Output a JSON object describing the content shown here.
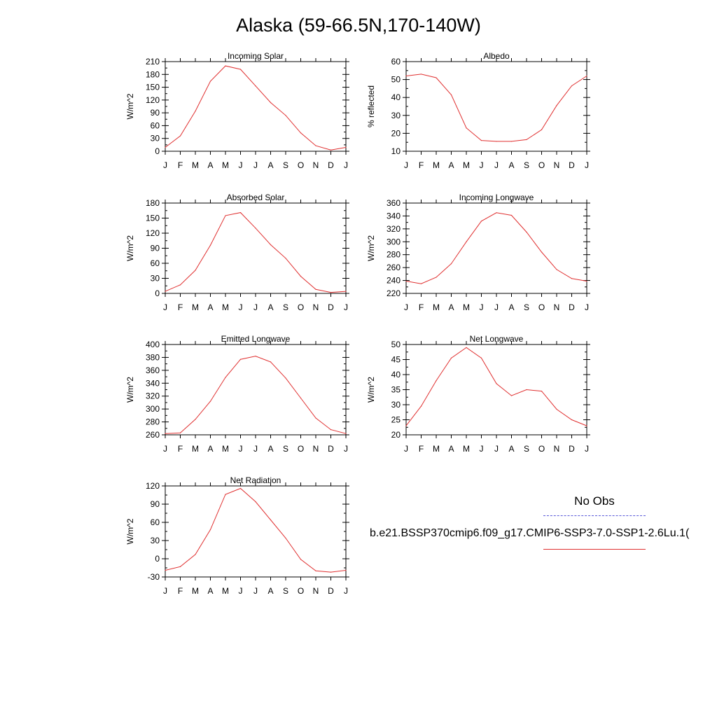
{
  "title": "Alaska (59-66.5N,170-140W)",
  "legend": {
    "obs_label": "No Obs",
    "model_label": "b.e21.BSSP370cmip6.f09_g17.CMIP6-SSP3-7.0-SSP1-2.6Lu.1(",
    "obs_color": "#5a5ad8",
    "model_color": "#e03030"
  },
  "chart_data": [
    {
      "type": "line",
      "title": "Incoming Solar",
      "ylabel": "W/m^2",
      "x": [
        "J",
        "F",
        "M",
        "A",
        "M",
        "J",
        "J",
        "A",
        "S",
        "O",
        "N",
        "D",
        "J"
      ],
      "ylim": [
        0,
        210
      ],
      "yticks": [
        0,
        30,
        60,
        90,
        120,
        150,
        180,
        210
      ],
      "series": [
        {
          "values": [
            9,
            36,
            94,
            164,
            200,
            192,
            153,
            114,
            84,
            43,
            13,
            3,
            9
          ]
        }
      ]
    },
    {
      "type": "line",
      "title": "Albedo",
      "ylabel": "% reflected",
      "x": [
        "J",
        "F",
        "M",
        "A",
        "M",
        "J",
        "J",
        "A",
        "S",
        "O",
        "N",
        "D",
        "J"
      ],
      "ylim": [
        10,
        60
      ],
      "yticks": [
        10,
        20,
        30,
        40,
        50,
        60
      ],
      "series": [
        {
          "values": [
            52,
            53,
            51,
            41.5,
            23,
            16,
            15.5,
            15.5,
            16.5,
            22,
            35.5,
            46.5,
            52
          ]
        }
      ]
    },
    {
      "type": "line",
      "title": "Absorbed Solar",
      "ylabel": "W/m^2",
      "x": [
        "J",
        "F",
        "M",
        "A",
        "M",
        "J",
        "J",
        "A",
        "S",
        "O",
        "N",
        "D",
        "J"
      ],
      "ylim": [
        0,
        180
      ],
      "yticks": [
        0,
        30,
        60,
        90,
        120,
        150,
        180
      ],
      "series": [
        {
          "values": [
            4,
            17,
            46,
            96,
            155,
            161,
            130,
            97,
            70,
            34,
            8,
            2,
            4
          ]
        }
      ]
    },
    {
      "type": "line",
      "title": "Incoming Longwave",
      "ylabel": "W/m^2",
      "x": [
        "J",
        "F",
        "M",
        "A",
        "M",
        "J",
        "J",
        "A",
        "S",
        "O",
        "N",
        "D",
        "J"
      ],
      "ylim": [
        220,
        360
      ],
      "yticks": [
        220,
        240,
        260,
        280,
        300,
        320,
        340,
        360
      ],
      "series": [
        {
          "values": [
            239,
            235,
            245,
            266,
            300,
            332,
            345,
            341,
            315,
            284,
            257,
            243,
            239
          ]
        }
      ]
    },
    {
      "type": "line",
      "title": "Emitted Longwave",
      "ylabel": "W/m^2",
      "x": [
        "J",
        "F",
        "M",
        "A",
        "M",
        "J",
        "J",
        "A",
        "S",
        "O",
        "N",
        "D",
        "J"
      ],
      "ylim": [
        260,
        400
      ],
      "yticks": [
        260,
        280,
        300,
        320,
        340,
        360,
        380,
        400
      ],
      "series": [
        {
          "values": [
            262,
            263,
            284,
            312,
            349,
            377,
            382,
            373,
            348,
            317,
            286,
            268,
            262
          ]
        }
      ]
    },
    {
      "type": "line",
      "title": "Net Longwave",
      "ylabel": "W/m^2",
      "x": [
        "J",
        "F",
        "M",
        "A",
        "M",
        "J",
        "J",
        "A",
        "S",
        "O",
        "N",
        "D",
        "J"
      ],
      "ylim": [
        20,
        50
      ],
      "yticks": [
        20,
        25,
        30,
        35,
        40,
        45,
        50
      ],
      "series": [
        {
          "values": [
            23,
            29.5,
            38,
            45.5,
            49,
            45.5,
            37,
            33,
            35,
            34.5,
            28.5,
            25,
            23
          ]
        }
      ]
    },
    {
      "type": "line",
      "title": "Net Radiation",
      "ylabel": "W/m^2",
      "x": [
        "J",
        "F",
        "M",
        "A",
        "M",
        "J",
        "J",
        "A",
        "S",
        "O",
        "N",
        "D",
        "J"
      ],
      "ylim": [
        -30,
        120
      ],
      "yticks": [
        -30,
        0,
        30,
        60,
        90,
        120
      ],
      "series": [
        {
          "values": [
            -19,
            -13,
            7,
            48,
            106,
            116,
            94,
            64,
            34,
            -1,
            -20,
            -22,
            -19
          ]
        }
      ]
    }
  ]
}
